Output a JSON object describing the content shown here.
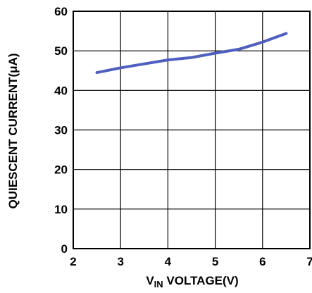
{
  "chart_data": {
    "type": "line",
    "title": "",
    "xlabel": {
      "prefix": "V",
      "subscript": "IN",
      "suffix": " VOLTAGE(V)"
    },
    "ylabel": "QUIESCENT CURRENT(μA)",
    "xlim": [
      2,
      7
    ],
    "ylim": [
      0,
      60
    ],
    "xticks": [
      "2",
      "3",
      "4",
      "5",
      "6",
      "7"
    ],
    "yticks": [
      "0",
      "10",
      "20",
      "30",
      "40",
      "50",
      "60"
    ],
    "grid": true,
    "series": [
      {
        "color": "#4f5fbf",
        "x": [
          2.5,
          3.0,
          3.5,
          4.0,
          4.5,
          5.0,
          5.5,
          6.0,
          6.5
        ],
        "y": [
          44.5,
          45.7,
          46.7,
          47.7,
          48.3,
          49.4,
          50.4,
          52.2,
          54.4
        ]
      }
    ]
  }
}
